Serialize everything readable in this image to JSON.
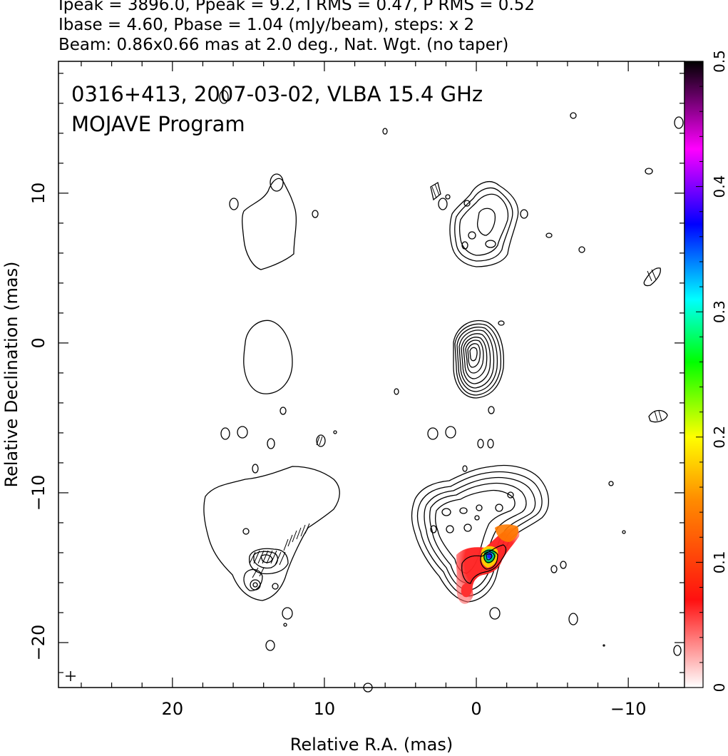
{
  "header": {
    "line1": "Ipeak = 3896.0, Ppeak = 9.2, I RMS = 0.47, P RMS = 0.52",
    "line2": "Ibase = 4.60, Pbase = 1.04 (mJy/beam), steps: x 2",
    "line3": "Beam: 0.86x0.66 mas at 2.0 deg., Nat. Wgt. (no taper)"
  },
  "chart_data": {
    "type": "heatmap",
    "title": "0316+413, 2007-03-02, VLBA 15.4 GHz",
    "subtitle": "MOJAVE Program",
    "xlabel": "Relative R.A. (mas)",
    "ylabel": "Relative Declination (mas)",
    "xlim": [
      27.5,
      -13.7
    ],
    "ylim": [
      -23.0,
      18.8
    ],
    "x_ticks": [
      20,
      10,
      0,
      -10
    ],
    "x_tick_labels": [
      "20",
      "10",
      "0",
      "−10"
    ],
    "y_ticks": [
      10,
      0,
      -10,
      -20
    ],
    "y_tick_labels": [
      "10",
      "0",
      "−10",
      "−20"
    ],
    "colorbar": {
      "range": [
        0,
        0.5
      ],
      "ticks": [
        0,
        0.1,
        0.2,
        0.3,
        0.4,
        0.5
      ],
      "tick_labels": [
        "0",
        "0.1",
        "0.2",
        "0.3",
        "0.4",
        "0.5"
      ],
      "colors": [
        "#ffffff",
        "#ff1010",
        "#ff8c00",
        "#ffff00",
        "#00ff00",
        "#00ffff",
        "#0000ff",
        "#ff00ff",
        "#000000"
      ]
    },
    "beam_marker": "+",
    "panels": [
      {
        "name": "top-left",
        "center": [
          14,
          7.5
        ],
        "type": "contour"
      },
      {
        "name": "top-right",
        "center": [
          0,
          7.5
        ],
        "type": "contour"
      },
      {
        "name": "middle-left",
        "center": [
          14,
          -1.3
        ],
        "type": "contour"
      },
      {
        "name": "middle-right",
        "center": [
          0.5,
          -1.0
        ],
        "type": "contour"
      },
      {
        "name": "bottom-left",
        "center": [
          13,
          -12.5
        ],
        "type": "contour+polarization vectors"
      },
      {
        "name": "bottom-right",
        "center": [
          -1,
          -12.5
        ],
        "type": "contour+fractional polarization"
      }
    ],
    "polarization_peak": {
      "x": -1.2,
      "y": -14.5,
      "value": 0.38
    }
  }
}
